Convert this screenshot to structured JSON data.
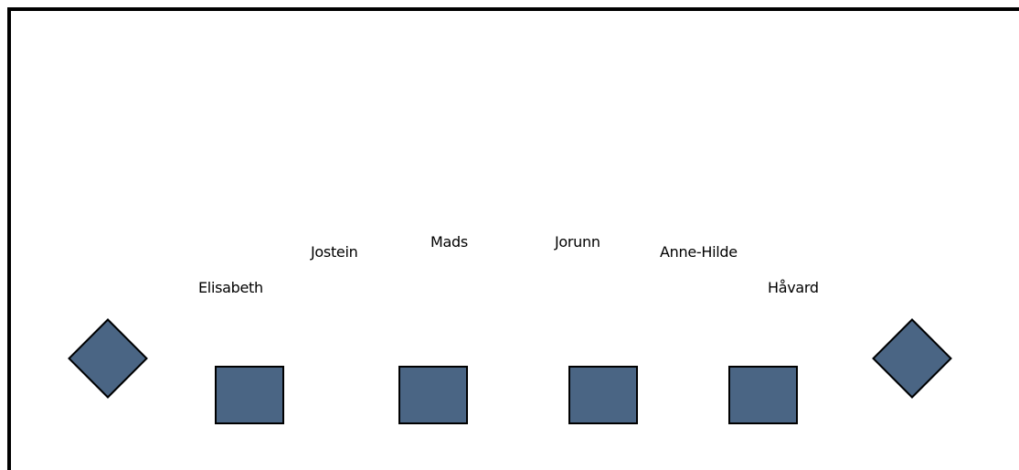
{
  "colors": {
    "seat_fill": "#4a6584",
    "seat_border": "#000000",
    "frame": "#000000"
  },
  "names": {
    "elisabeth": "Elisabeth",
    "jostein": "Jostein",
    "mads": "Mads",
    "jorunn": "Jorunn",
    "anne_hilde": "Anne-Hilde",
    "havard": "Håvard"
  }
}
